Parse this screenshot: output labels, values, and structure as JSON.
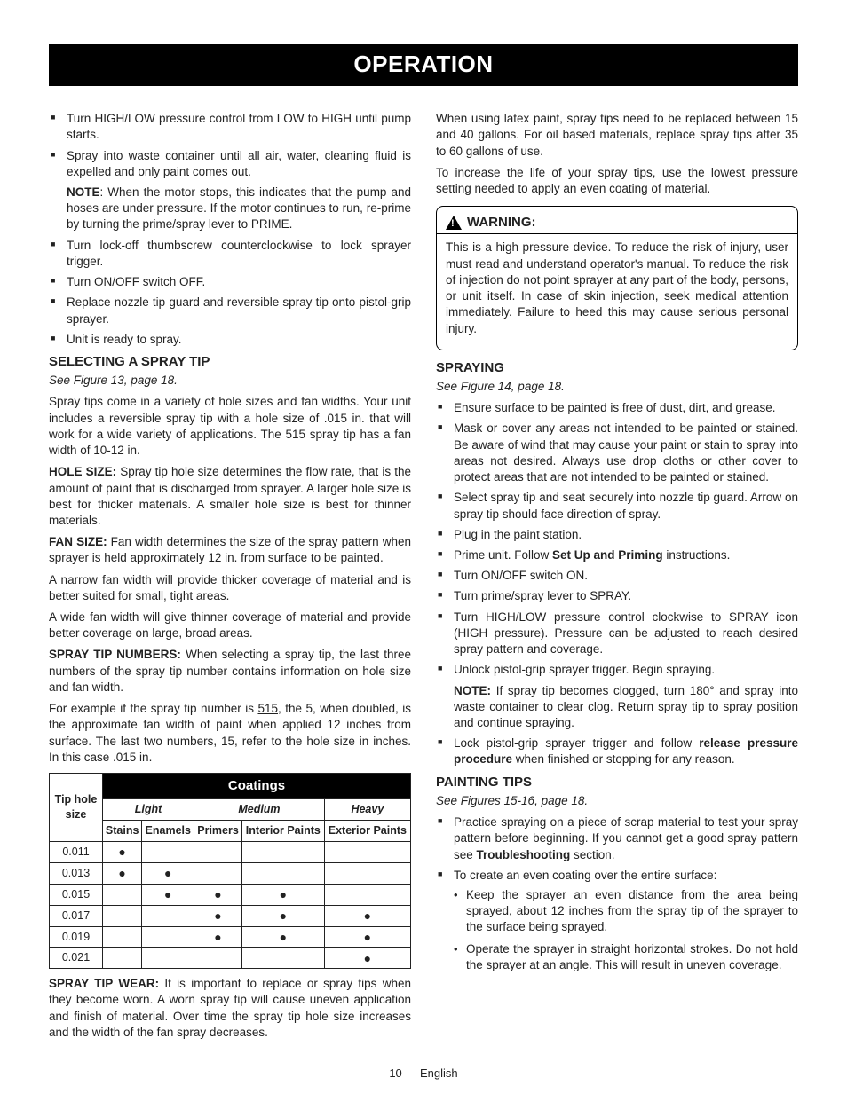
{
  "title": "OPERATION",
  "footer": "10 — English",
  "left": {
    "top_list": [
      "Turn HIGH/LOW pressure control from LOW to HIGH until pump starts.",
      "Spray into waste container until all air, water, cleaning fluid is expelled and only paint comes out."
    ],
    "note_label": "NOTE",
    "note_text": ": When the motor stops, this indicates that the pump and hoses are under pressure. If the motor continues to run, re-prime by turning the prime/spray lever to PRIME.",
    "top_list2": [
      "Turn lock-off thumbscrew counterclockwise to lock sprayer trigger.",
      "Turn ON/OFF switch OFF.",
      "Replace nozzle tip guard and reversible spray tip onto pistol-grip sprayer.",
      "Unit is ready to spray."
    ],
    "select_heading": "SELECTING A SPRAY TIP",
    "select_fig": "See Figure 13, page 18.",
    "select_p1": "Spray tips come in a variety of hole sizes and fan widths. Your unit includes a reversible spray tip with a hole size of .015 in. that will work for a wide variety of applications. The 515 spray tip has a fan width of 10-12 in.",
    "hole_label": "HOLE SIZE:",
    "hole_text": " Spray tip hole size determines the flow rate, that is the amount of paint that is discharged from sprayer. A larger hole size is best for thicker materials. A smaller hole size is best for thinner materials.",
    "fan_label": "FAN SIZE:",
    "fan_text": " Fan width determines the size of the spray pattern when sprayer is held  approximately 12 in. from surface to be painted.",
    "narrow_text": "A narrow fan width will provide thicker coverage of material and is better suited for small, tight areas.",
    "wide_text": "A wide fan width will give thinner coverage of material and provide better coverage on large, broad areas.",
    "sprnum_label": "SPRAY TIP NUMBERS:",
    "sprnum_text": " When selecting a spray tip, the last three numbers of the spray tip number contains information on hole size and fan width.",
    "example_pre": "For example if the spray tip number is ",
    "example_num": "515",
    "example_post": ", the 5, when doubled, is the approximate fan width of paint when applied 12 inches from surface. The last two numbers, 15, refer to the hole size in inches. In this case .015 in.",
    "wear_label": "SPRAY TIP WEAR:",
    "wear_text": " It is important to replace or spray tips when they become worn. A worn spray tip will cause uneven application and finish of material. Over time the spray tip hole size increases and the width of the fan spray decreases."
  },
  "table": {
    "rowhdr": "Tip hole size",
    "coatings": "Coatings",
    "light": "Light",
    "medium": "Medium",
    "heavy": "Heavy",
    "sub": [
      "Stains",
      "Enamels",
      "Primers",
      "Interior Paints",
      "Exterior Paints"
    ],
    "rows": [
      {
        "size": "0.011",
        "dots": [
          true,
          false,
          false,
          false,
          false
        ]
      },
      {
        "size": "0.013",
        "dots": [
          true,
          true,
          false,
          false,
          false
        ]
      },
      {
        "size": "0.015",
        "dots": [
          false,
          true,
          true,
          true,
          false
        ]
      },
      {
        "size": "0.017",
        "dots": [
          false,
          false,
          true,
          true,
          true
        ]
      },
      {
        "size": "0.019",
        "dots": [
          false,
          false,
          true,
          true,
          true
        ]
      },
      {
        "size": "0.021",
        "dots": [
          false,
          false,
          false,
          false,
          true
        ]
      }
    ]
  },
  "right": {
    "intro1": "When using latex paint, spray tips need to be replaced between 15 and 40 gallons. For oil based materials, replace spray tips after 35 to 60 gallons of use.",
    "intro2": "To increase the life of your spray tips, use the lowest pressure setting needed to apply an even coating of material.",
    "warning_label": "WARNING:",
    "warning_text": "This is a high pressure device. To reduce the risk of injury, user must read and understand operator's manual. To reduce the risk of injection do not point sprayer at any part of the body, persons, or unit itself. In case of skin injection, seek medical attention immediately. Failure to heed this may cause serious personal injury.",
    "spray_heading": "SPRAYING",
    "spray_fig": "See Figure 14, page 18.",
    "spray_list": [
      "Ensure surface to be painted is free of dust, dirt, and grease.",
      "Mask or cover any areas not intended to be painted or stained. Be aware of wind that may cause your paint or stain to spray into areas not desired. Always use drop cloths or other cover to protect areas that are not intended to be painted or stained.",
      "Select spray tip and seat securely into nozzle tip guard. Arrow on spray tip should face direction of spray.",
      "Plug in the paint station."
    ],
    "prime_pre": "Prime unit. Follow ",
    "prime_bold": "Set Up and Priming",
    "prime_post": " instructions.",
    "spray_list2": [
      "Turn ON/OFF switch ON.",
      "Turn prime/spray lever to SPRAY.",
      "Turn HIGH/LOW pressure control clockwise to SPRAY icon (HIGH pressure). Pressure can be adjusted to reach desired spray pattern and coverage.",
      "Unlock pistol-grip sprayer trigger. Begin spraying."
    ],
    "clog_label": "NOTE:",
    "clog_text": " If spray tip becomes clogged, turn 180° and spray into waste container to clear clog. Return spray tip to spray position and continue spraying.",
    "lock_pre": "Lock pistol-grip sprayer trigger and follow ",
    "lock_bold": "release pressure procedure",
    "lock_post": " when finished or stopping for any reason.",
    "tips_heading": "PAINTING TIPS",
    "tips_fig": "See Figures 15-16, page 18.",
    "tips_item1_pre": "Practice spraying on a piece of scrap material to test your spray pattern before beginning. If you cannot get a good spray pattern see ",
    "tips_item1_bold": "Troubleshooting",
    "tips_item1_post": " section.",
    "tips_item2": "To create an even coating over the entire surface:",
    "tips_sub": [
      "Keep the sprayer an even distance from the area being sprayed, about 12 inches from the spray tip of the sprayer to the surface being sprayed.",
      "Operate the sprayer in straight horizontal strokes. Do not hold the sprayer at an angle. This will result in uneven coverage."
    ]
  }
}
